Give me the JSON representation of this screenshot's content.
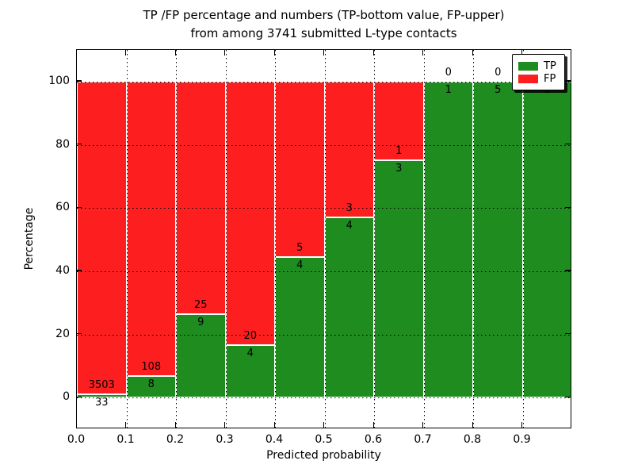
{
  "figure": {
    "title_line1": "TP /FP percentage and numbers (TP-bottom value, FP-upper)",
    "title_line2": "from among 3741 submitted L-type contacts"
  },
  "chart_data": {
    "type": "bar",
    "stacked": true,
    "normalized": "each bin scaled to 100%",
    "title": "TP /FP percentage and numbers (TP-bottom value, FP-upper) from among 3741 submitted L-type contacts",
    "xlabel": "Predicted probability",
    "ylabel": "Percentage",
    "total_contacts": 3741,
    "bin_edges": [
      0.0,
      0.1,
      0.2,
      0.3,
      0.4,
      0.5,
      0.6,
      0.7,
      0.8,
      0.9,
      1.0
    ],
    "xtick_labels": [
      "0.0",
      "0.1",
      "0.2",
      "0.3",
      "0.4",
      "0.5",
      "0.6",
      "0.7",
      "0.8",
      "0.9"
    ],
    "yticks": [
      0,
      20,
      40,
      60,
      80,
      100
    ],
    "xlim": [
      0.0,
      1.0
    ],
    "ylim": [
      -10,
      110
    ],
    "grid": true,
    "legend_position": "upper-right",
    "series": [
      {
        "name": "TP",
        "color": "#1e8c1e",
        "values": [
          33,
          8,
          9,
          4,
          4,
          4,
          3,
          1,
          5,
          5
        ]
      },
      {
        "name": "FP",
        "color": "#fd1f1f",
        "values": [
          3503,
          108,
          25,
          20,
          5,
          3,
          1,
          0,
          0,
          0
        ]
      }
    ],
    "tp_percent_by_bin": [
      0.9,
      6.9,
      26.5,
      16.7,
      44.4,
      57.1,
      75.0,
      100.0,
      100.0,
      100.0
    ]
  }
}
